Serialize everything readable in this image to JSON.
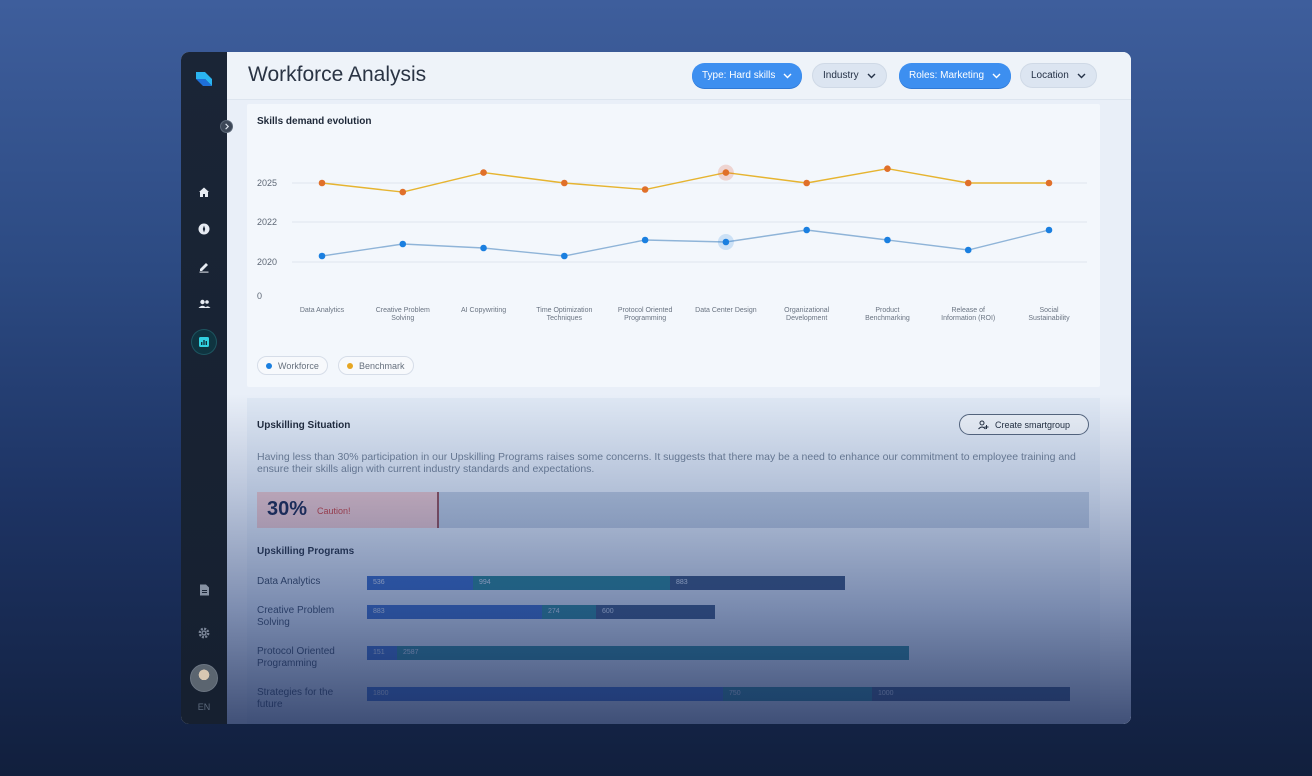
{
  "header": {
    "title": "Workforce Analysis",
    "filters": [
      {
        "label": "Type: Hard skills",
        "active": true
      },
      {
        "label": "Industry",
        "active": false
      },
      {
        "label": "Roles: Marketing",
        "active": true
      },
      {
        "label": "Location",
        "active": false
      }
    ]
  },
  "sidebar": {
    "nav": [
      "home-icon",
      "explore-icon",
      "edit-icon",
      "users-icon",
      "analytics-icon"
    ],
    "bottom": [
      "document-icon",
      "gear-icon"
    ],
    "language": "EN"
  },
  "chart_data": {
    "type": "line",
    "title": "Skills demand evolution",
    "categories": [
      "Data Analytics",
      "Creative Problem Solving",
      "AI Copywriting",
      "Time Optimization Techniques",
      "Protocol Oriented Programming",
      "Data Center Design",
      "Organizational Development",
      "Product Benchmarking",
      "Release of Information (ROI)",
      "Social Sustainability"
    ],
    "y_ticks": [
      "0",
      "2020",
      "2022",
      "2025"
    ],
    "series": [
      {
        "name": "Workforce",
        "color": "#1a7fe0",
        "values": [
          2020.3,
          2020.9,
          2020.7,
          2020.3,
          2021.1,
          2021.0,
          2021.6,
          2021.1,
          2020.6,
          2021.6
        ]
      },
      {
        "name": "Benchmark",
        "color": "#e6a623",
        "values": [
          2025.0,
          2024.3,
          2025.8,
          2025.0,
          2024.5,
          2025.8,
          2025.0,
          2026.1,
          2025.0,
          2025.0
        ]
      }
    ],
    "highlight_index": 5,
    "legend_position": "bottom-left",
    "grid": true
  },
  "upskilling": {
    "title": "Upskilling Situation",
    "create_button": "Create smartgroup",
    "description": "Having less than 30% participation in our Upskilling Programs raises some concerns. It suggests that there may be a need to enhance our commitment to employee training and ensure their skills align with current industry standards and expectations.",
    "participation_pct": 30,
    "participation_label": "30%",
    "status": "Caution!",
    "programs_title": "Upskilling Programs",
    "programs": [
      {
        "name": "Data Analytics",
        "segments": [
          536,
          994,
          883
        ]
      },
      {
        "name": "Creative Problem Solving",
        "segments": [
          883,
          274,
          600
        ]
      },
      {
        "name": "Protocol Oriented Programming",
        "segments": [
          151,
          2587,
          0
        ]
      },
      {
        "name": "Strategies for the future",
        "segments": [
          1800,
          750,
          1000
        ]
      }
    ]
  }
}
